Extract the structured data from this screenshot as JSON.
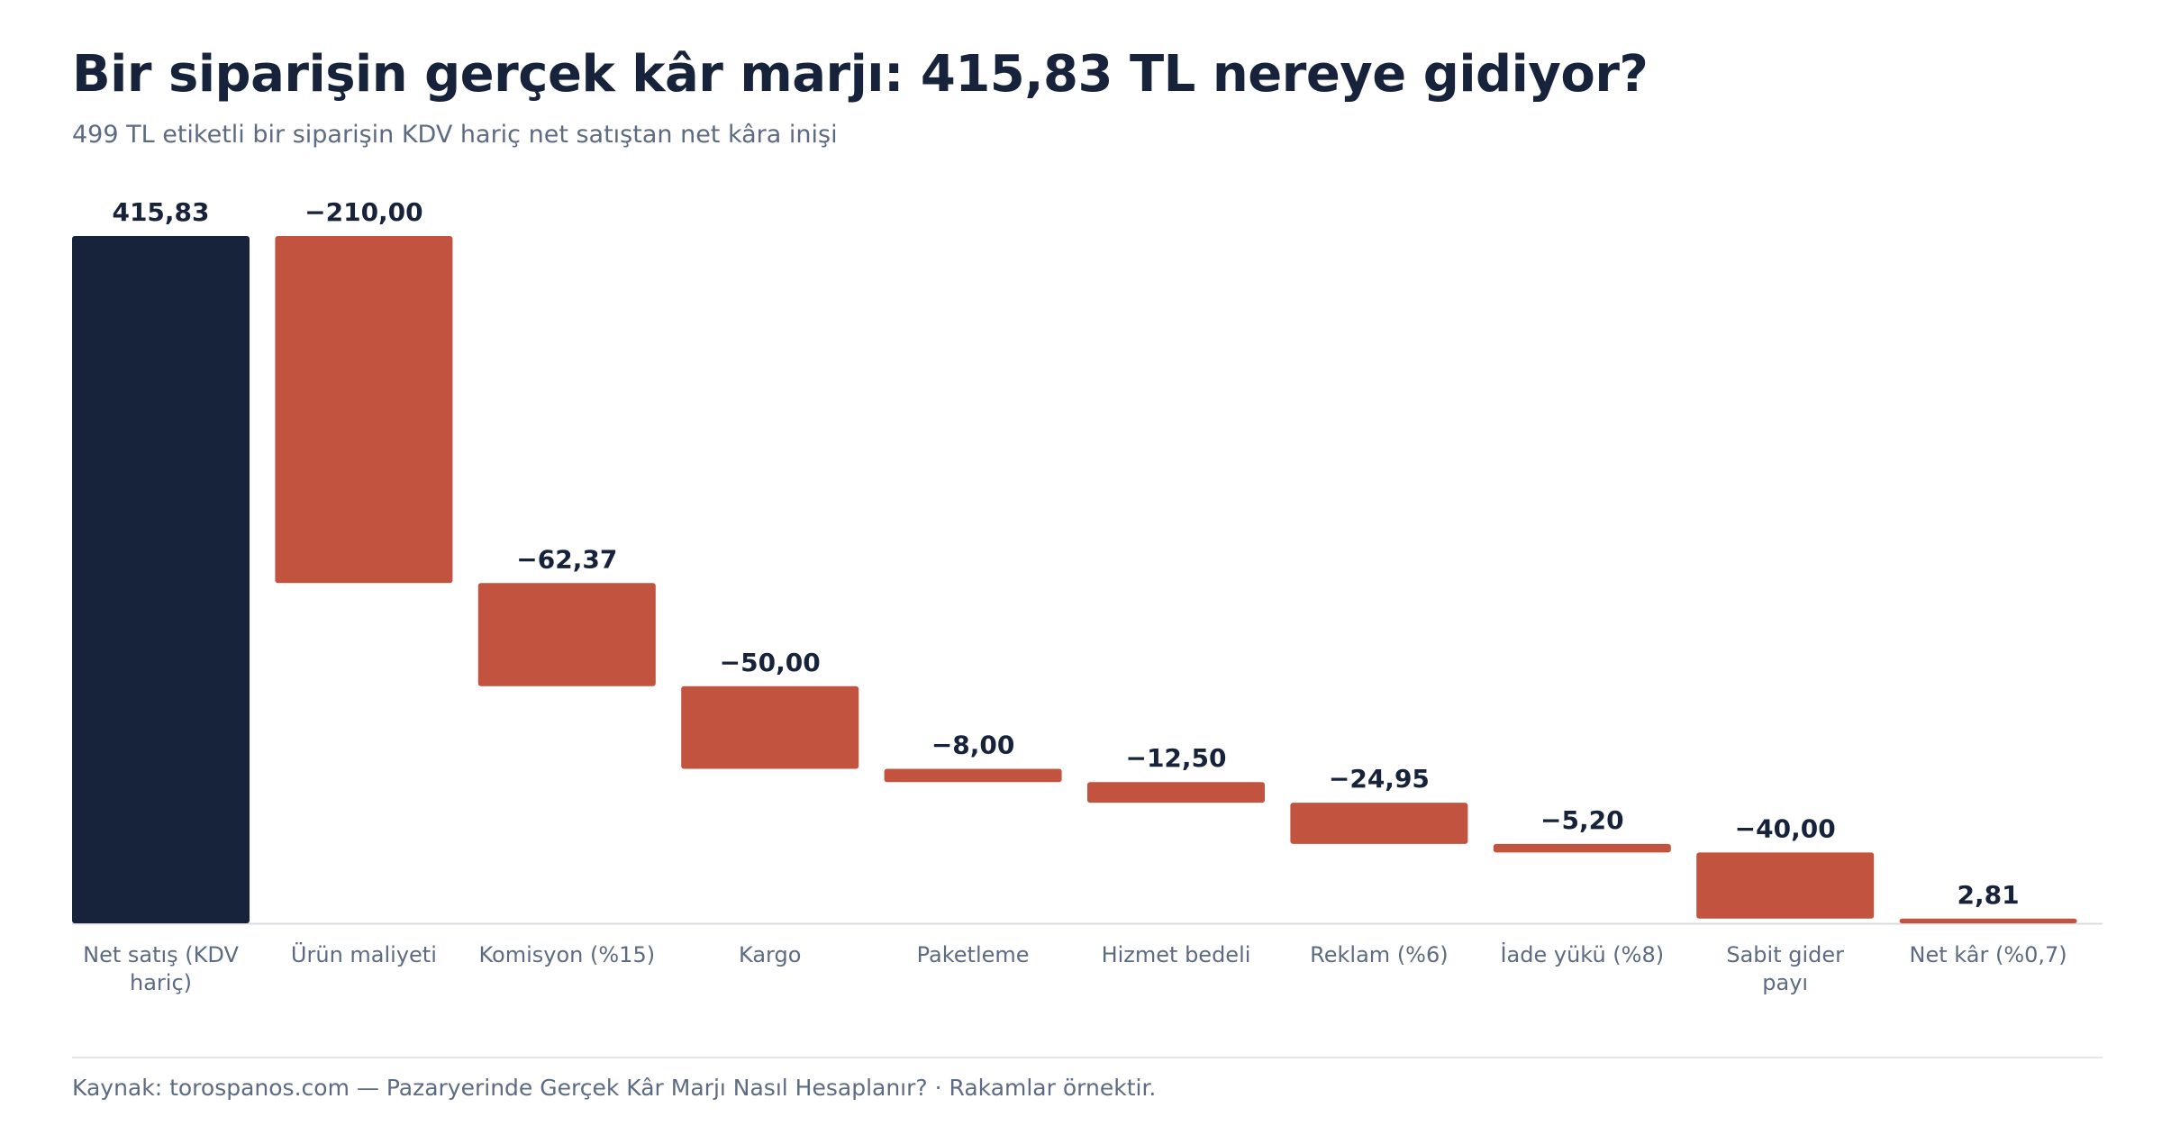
{
  "header": {
    "title": "Bir siparişin gerçek kâr marjı: 415,83 TL nereye gidiyor?",
    "subtitle": "499 TL etiketli bir siparişin KDV hariç net satıştan net kâra inişi"
  },
  "footer": {
    "source": "Kaynak: torospanos.com — Pazaryerinde Gerçek Kâr Marjı Nasıl Hesaplanır? · Rakamlar örnektir."
  },
  "colors": {
    "total": "#17223b",
    "decrease": "#c2533e",
    "result": "#c2533e",
    "axis": "#d9dce1"
  },
  "chart_data": {
    "type": "waterfall",
    "title": "Bir siparişin gerçek kâr marjı: 415,83 TL nereye gidiyor?",
    "subtitle": "499 TL etiketli bir siparişin KDV hariç net satıştan net kâra inişi",
    "ylim": [
      0,
      415.83
    ],
    "grid": false,
    "bars": [
      {
        "category": [
          "Net satış (KDV",
          "hariç)"
        ],
        "value": 415.83,
        "label": "415,83",
        "kind": "total"
      },
      {
        "category": [
          "Ürün maliyeti"
        ],
        "value": -210.0,
        "label": "−210,00",
        "kind": "decrease"
      },
      {
        "category": [
          "Komisyon (%15)"
        ],
        "value": -62.37,
        "label": "−62,37",
        "kind": "decrease"
      },
      {
        "category": [
          "Kargo"
        ],
        "value": -50.0,
        "label": "−50,00",
        "kind": "decrease"
      },
      {
        "category": [
          "Paketleme"
        ],
        "value": -8.0,
        "label": "−8,00",
        "kind": "decrease"
      },
      {
        "category": [
          "Hizmet bedeli"
        ],
        "value": -12.5,
        "label": "−12,50",
        "kind": "decrease"
      },
      {
        "category": [
          "Reklam (%6)"
        ],
        "value": -24.95,
        "label": "−24,95",
        "kind": "decrease"
      },
      {
        "category": [
          "İade yükü (%8)"
        ],
        "value": -5.2,
        "label": "−5,20",
        "kind": "decrease"
      },
      {
        "category": [
          "Sabit gider",
          "payı"
        ],
        "value": -40.0,
        "label": "−40,00",
        "kind": "decrease"
      },
      {
        "category": [
          "Net kâr (%0,7)"
        ],
        "value": 2.81,
        "label": "2,81",
        "kind": "result"
      }
    ]
  }
}
